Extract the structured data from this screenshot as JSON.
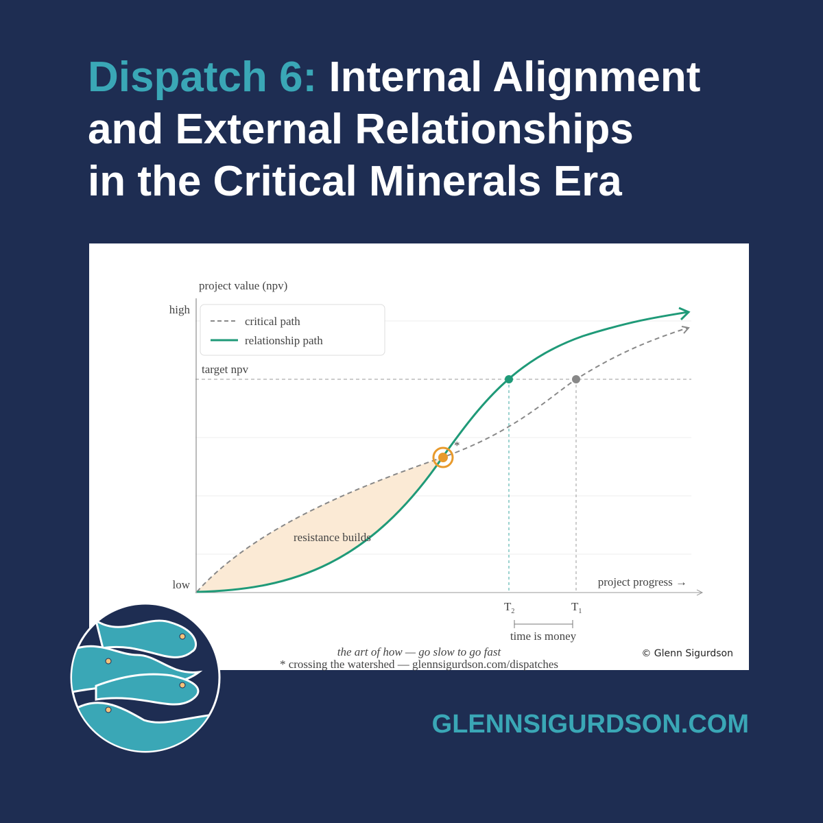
{
  "header": {
    "title_prefix": "Dispatch 6:",
    "title_lines": [
      "Internal Alignment",
      "and External Relationships",
      "in the Critical Minerals Era"
    ]
  },
  "figure": {
    "y_axis_label": "project value (npv)",
    "y_high": "high",
    "y_low": "low",
    "x_axis_label": "project progress →",
    "legend": [
      "critical path",
      "relationship path"
    ],
    "target_label": "target npv",
    "area_label": "resistance builds",
    "marker": "*",
    "t2": {
      "base": "T",
      "sub": "2"
    },
    "t1": {
      "base": "T",
      "sub": "1"
    },
    "interval_label": "time is money",
    "tagline": "the art of how — go slow to go fast",
    "footnote": "* crossing the watershed — glennsigurdson.com/dispatches",
    "credit": "© Glenn Sigurdson"
  },
  "footer": {
    "website": "GLENNSIGURDSON.COM"
  }
}
